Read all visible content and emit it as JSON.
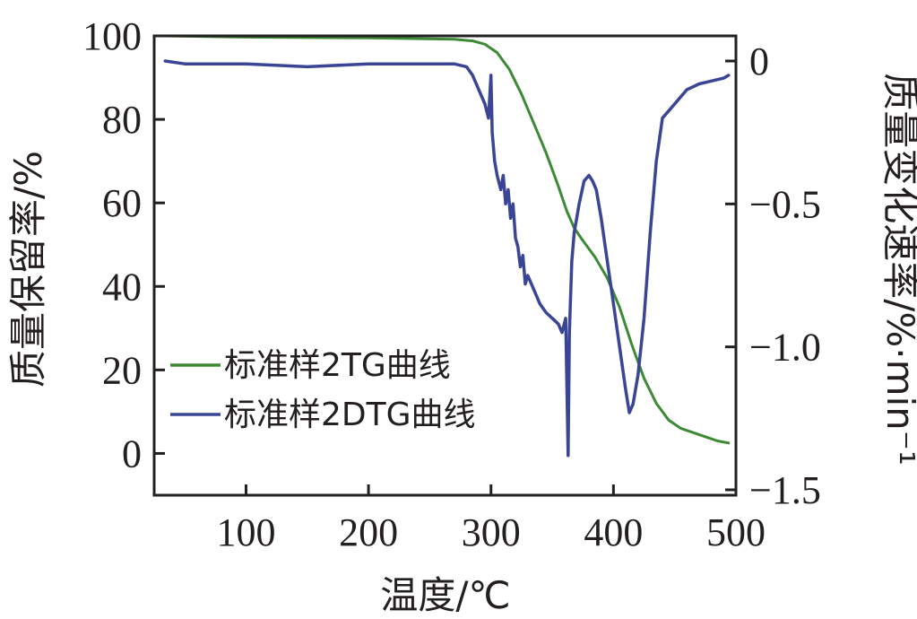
{
  "chart_data": {
    "type": "line",
    "title": "",
    "xlabel": "温度/℃",
    "ylabel": "质量保留率/%",
    "y2label": "质量变化速率/%·min⁻¹",
    "xlim": [
      25,
      500
    ],
    "ylim": [
      -10,
      100
    ],
    "y2lim": [
      -1.5,
      0
    ],
    "x_ticks": [
      100,
      200,
      300,
      400,
      500
    ],
    "y_ticks": [
      0,
      20,
      40,
      60,
      80,
      100
    ],
    "y2_ticks": [
      {
        "value": 0,
        "label": "0"
      },
      {
        "value": -0.5,
        "label": "−0.5"
      },
      {
        "value": -1.0,
        "label": "−1.0"
      },
      {
        "value": -1.5,
        "label": "−1.5"
      }
    ],
    "grid": false,
    "legend_position": "lower-left",
    "series": [
      {
        "name": "标准样2TG曲线",
        "axis": "left",
        "color": "#3d8a35",
        "x": [
          34,
          100,
          200,
          270,
          285,
          295,
          305,
          315,
          325,
          335,
          345,
          355,
          362,
          368,
          375,
          385,
          395,
          405,
          415,
          425,
          435,
          445,
          455,
          465,
          475,
          485,
          494
        ],
        "y": [
          100,
          99.7,
          99.5,
          99.2,
          98.8,
          98,
          96,
          92,
          86,
          79,
          72,
          64,
          58,
          54,
          51,
          47,
          42,
          35,
          26,
          18,
          12,
          8,
          6,
          5,
          4,
          3,
          2.5
        ]
      },
      {
        "name": "标准样2DTG曲线",
        "axis": "right",
        "color": "#3a4595",
        "x": [
          34,
          50,
          100,
          150,
          200,
          250,
          270,
          280,
          285,
          290,
          295,
          298,
          300,
          301,
          303,
          305,
          308,
          310,
          312,
          314,
          316,
          318,
          320,
          322,
          324,
          326,
          328,
          330,
          335,
          340,
          345,
          350,
          355,
          358,
          361,
          363,
          364,
          366,
          368,
          372,
          376,
          380,
          383,
          386,
          390,
          395,
          400,
          405,
          410,
          413,
          416,
          420,
          425,
          430,
          435,
          440,
          450,
          460,
          470,
          480,
          490,
          494
        ],
        "y": [
          0,
          -0.01,
          -0.01,
          -0.02,
          -0.01,
          -0.01,
          -0.01,
          -0.02,
          -0.05,
          -0.1,
          -0.15,
          -0.2,
          -0.05,
          -0.25,
          -0.35,
          -0.4,
          -0.45,
          -0.4,
          -0.5,
          -0.45,
          -0.55,
          -0.5,
          -0.62,
          -0.65,
          -0.72,
          -0.68,
          -0.78,
          -0.75,
          -0.8,
          -0.85,
          -0.88,
          -0.9,
          -0.92,
          -0.95,
          -0.9,
          -1.38,
          -0.95,
          -0.7,
          -0.6,
          -0.5,
          -0.42,
          -0.4,
          -0.42,
          -0.45,
          -0.55,
          -0.7,
          -0.85,
          -1.0,
          -1.15,
          -1.23,
          -1.2,
          -1.1,
          -0.9,
          -0.6,
          -0.35,
          -0.2,
          -0.15,
          -0.1,
          -0.08,
          -0.07,
          -0.06,
          -0.05
        ]
      }
    ]
  }
}
